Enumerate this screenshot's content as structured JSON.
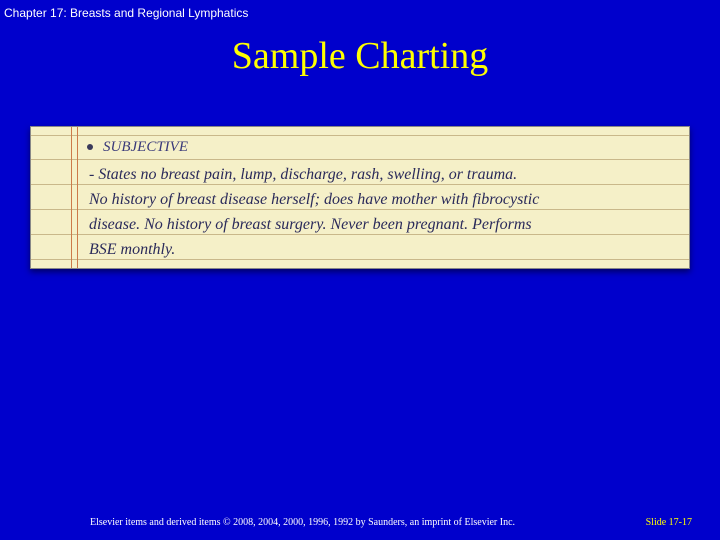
{
  "chapter_header": "Chapter 17: Breasts and Regional Lymphatics",
  "title": "Sample Charting",
  "notepad": {
    "subjective_label": "SUBJECTIVE",
    "lines": {
      "l1": "- States no breast pain, lump, discharge, rash, swelling, or trauma.",
      "l2": "No history of breast disease herself; does have mother with fibrocystic",
      "l3": "disease. No history of breast surgery. Never been pregnant. Performs",
      "l4": "BSE monthly."
    }
  },
  "footer": {
    "copyright": "Elsevier items and derived items © 2008, 2004, 2000, 1996, 1992 by Saunders, an imprint of Elsevier Inc.",
    "slide": "Slide 17-17"
  },
  "colors": {
    "background": "#0000cc",
    "title": "#ffff00",
    "header_text": "#ffffff",
    "paper": "#f5f0c8",
    "rule": "#c9b88a",
    "margin": "#cc7a4a",
    "ink": "#2a2a5a"
  }
}
